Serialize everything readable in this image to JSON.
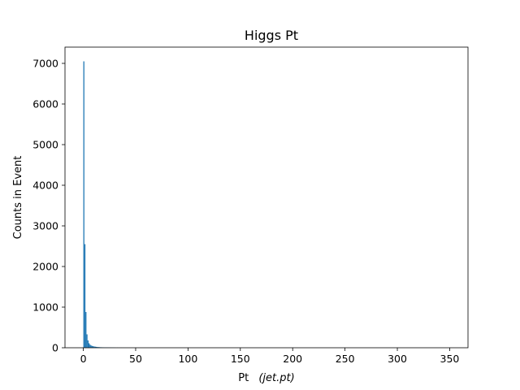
{
  "chart_data": {
    "type": "bar",
    "title": "Higgs Pt",
    "xlabel_main": "Pt",
    "xlabel_math": "(jet.pt)",
    "ylabel": "Counts in Event",
    "xlim": [
      -17.5,
      367.5
    ],
    "ylim": [
      0,
      7400
    ],
    "x_ticks": [
      0,
      50,
      100,
      150,
      200,
      250,
      300,
      350
    ],
    "y_ticks": [
      0,
      1000,
      2000,
      3000,
      4000,
      5000,
      6000,
      7000
    ],
    "grid": false,
    "bar_color": "#1f77b4",
    "bin_width": 1,
    "bins": [
      {
        "x": 0,
        "value": 7050
      },
      {
        "x": 1,
        "value": 2550
      },
      {
        "x": 2,
        "value": 880
      },
      {
        "x": 3,
        "value": 330
      },
      {
        "x": 4,
        "value": 180
      },
      {
        "x": 5,
        "value": 110
      },
      {
        "x": 6,
        "value": 75
      },
      {
        "x": 7,
        "value": 55
      },
      {
        "x": 8,
        "value": 45
      },
      {
        "x": 9,
        "value": 38
      },
      {
        "x": 10,
        "value": 30
      },
      {
        "x": 11,
        "value": 26
      },
      {
        "x": 12,
        "value": 22
      },
      {
        "x": 13,
        "value": 18
      },
      {
        "x": 14,
        "value": 16
      },
      {
        "x": 15,
        "value": 14
      },
      {
        "x": 16,
        "value": 12
      },
      {
        "x": 17,
        "value": 11
      },
      {
        "x": 18,
        "value": 10
      },
      {
        "x": 19,
        "value": 9
      },
      {
        "x": 20,
        "value": 8
      },
      {
        "x": 21,
        "value": 7
      },
      {
        "x": 22,
        "value": 7
      },
      {
        "x": 23,
        "value": 6
      },
      {
        "x": 24,
        "value": 6
      },
      {
        "x": 25,
        "value": 5
      },
      {
        "x": 26,
        "value": 5
      },
      {
        "x": 27,
        "value": 4
      },
      {
        "x": 28,
        "value": 4
      },
      {
        "x": 29,
        "value": 3
      },
      {
        "x": 30,
        "value": 3
      },
      {
        "x": 32,
        "value": 3
      },
      {
        "x": 34,
        "value": 2
      },
      {
        "x": 36,
        "value": 2
      },
      {
        "x": 38,
        "value": 2
      },
      {
        "x": 40,
        "value": 1
      },
      {
        "x": 45,
        "value": 1
      },
      {
        "x": 50,
        "value": 1
      }
    ]
  }
}
